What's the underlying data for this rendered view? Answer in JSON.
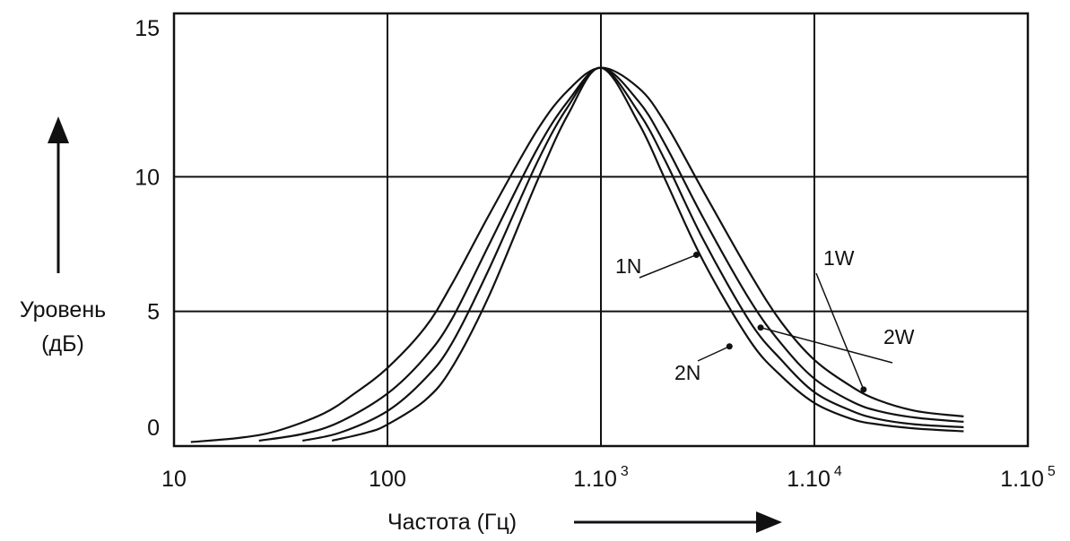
{
  "chart_data": {
    "type": "line",
    "xscale": "log",
    "xlim": [
      10,
      100000
    ],
    "ylim": [
      0,
      15
    ],
    "grid": true,
    "xlabel": "Частота (Гц)",
    "ylabel": [
      "Уровень",
      "(дБ)"
    ],
    "xticks": [
      {
        "value": 10,
        "base": "10",
        "exp": ""
      },
      {
        "value": 100,
        "base": "100",
        "exp": ""
      },
      {
        "value": 1000,
        "base": "1.10",
        "exp": "3"
      },
      {
        "value": 10000,
        "base": "1.10",
        "exp": "4"
      },
      {
        "value": 100000,
        "base": "1.10",
        "exp": "5"
      }
    ],
    "yticks": [
      {
        "value": 0,
        "label": "0"
      },
      {
        "value": 5,
        "label": "5"
      },
      {
        "value": 10,
        "label": "10"
      },
      {
        "value": 15,
        "label": "15"
      }
    ],
    "series": [
      {
        "name": "1W",
        "x": [
          12,
          20,
          30,
          50,
          70,
          100,
          150,
          200,
          300,
          500,
          700,
          1000,
          1500,
          2000,
          3000,
          5000,
          7000,
          10000,
          15000,
          20000,
          30000,
          50000
        ],
        "y": [
          0.15,
          0.3,
          0.55,
          1.2,
          1.95,
          2.9,
          4.4,
          6.0,
          8.6,
          11.7,
          13.2,
          14.05,
          13.3,
          12.0,
          9.5,
          6.4,
          4.6,
          3.2,
          2.2,
          1.7,
          1.3,
          1.1
        ],
        "marker": {
          "x": 17000,
          "y": 2.1
        }
      },
      {
        "name": "2W",
        "x": [
          25,
          40,
          60,
          100,
          150,
          200,
          300,
          500,
          700,
          1000,
          1500,
          2000,
          3000,
          5000,
          7000,
          10000,
          15000,
          20000,
          30000,
          50000
        ],
        "y": [
          0.2,
          0.45,
          0.9,
          1.95,
          3.3,
          4.7,
          7.5,
          11.0,
          12.8,
          14.05,
          12.8,
          11.2,
          8.5,
          5.4,
          3.8,
          2.5,
          1.65,
          1.3,
          1.05,
          0.9
        ],
        "marker": {
          "x": 5600,
          "y": 4.4
        }
      },
      {
        "name": "1N",
        "x": [
          40,
          60,
          100,
          150,
          200,
          300,
          500,
          700,
          1000,
          1500,
          2000,
          3000,
          5000,
          7000,
          10000,
          15000,
          20000,
          30000,
          50000
        ],
        "y": [
          0.2,
          0.5,
          1.3,
          2.5,
          3.8,
          6.6,
          10.5,
          12.6,
          14.05,
          12.4,
          10.6,
          7.7,
          4.6,
          3.2,
          2.0,
          1.3,
          1.0,
          0.8,
          0.7
        ],
        "marker": {
          "x": 2800,
          "y": 7.1
        }
      },
      {
        "name": "2N",
        "x": [
          55,
          80,
          100,
          150,
          200,
          300,
          500,
          700,
          1000,
          1500,
          2000,
          3000,
          5000,
          7000,
          10000,
          15000,
          20000,
          30000,
          50000
        ],
        "y": [
          0.2,
          0.5,
          0.8,
          1.7,
          2.9,
          5.6,
          9.8,
          12.3,
          14.05,
          12.0,
          9.9,
          6.9,
          3.9,
          2.6,
          1.6,
          1.0,
          0.8,
          0.65,
          0.55
        ],
        "marker": {
          "x": 4000,
          "y": 3.7
        }
      }
    ]
  }
}
